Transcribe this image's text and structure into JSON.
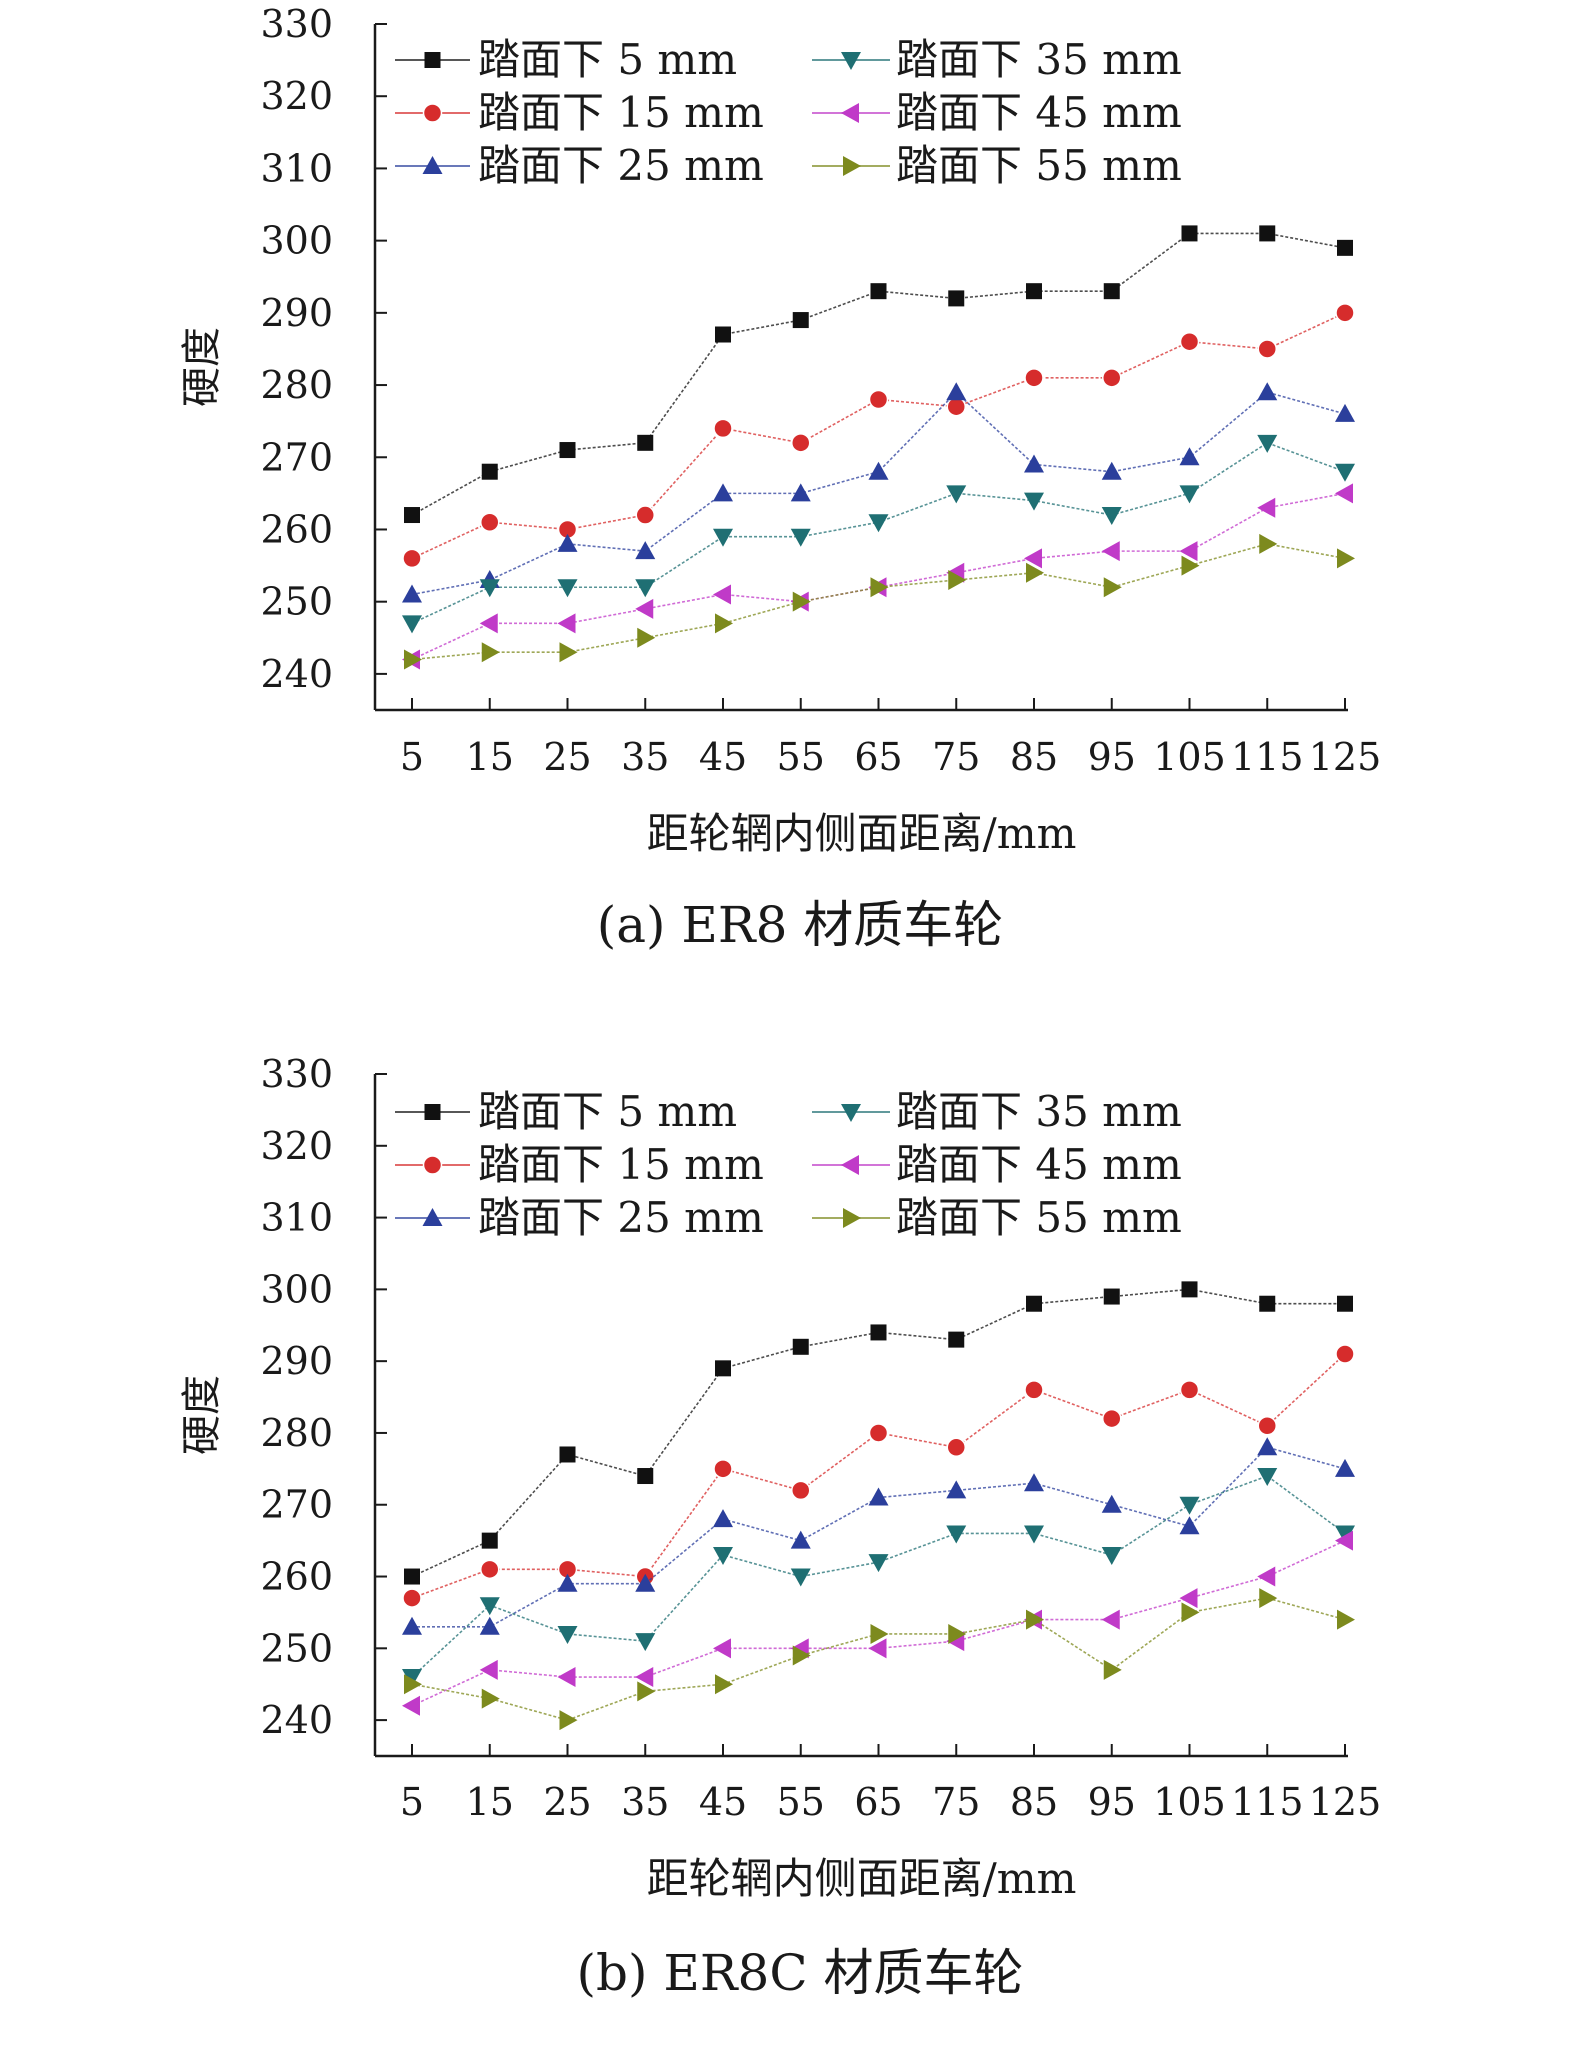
{
  "chart_data": [
    {
      "type": "line",
      "caption": "(a) ER8 材质车轮",
      "xlabel": "距轮辋内侧面距离/mm",
      "ylabel": "硬度",
      "x": [
        5,
        15,
        25,
        35,
        45,
        55,
        65,
        75,
        85,
        95,
        105,
        115,
        125
      ],
      "yticks": [
        240,
        250,
        260,
        270,
        280,
        290,
        300,
        310,
        320,
        330
      ],
      "ylim": [
        235,
        330
      ],
      "legend_position": "top-left",
      "series": [
        {
          "name": "踏面下 5 mm",
          "color": "#111111",
          "marker": "square",
          "values": [
            262,
            268,
            271,
            272,
            287,
            289,
            293,
            292,
            293,
            293,
            301,
            301,
            299
          ]
        },
        {
          "name": "踏面下 15 mm",
          "color": "#d62c2c",
          "marker": "circle",
          "values": [
            256,
            261,
            260,
            262,
            274,
            272,
            278,
            277,
            281,
            281,
            286,
            285,
            290
          ]
        },
        {
          "name": "踏面下 25 mm",
          "color": "#2b3f9c",
          "marker": "triangle-up",
          "values": [
            251,
            253,
            258,
            257,
            265,
            265,
            268,
            279,
            269,
            268,
            270,
            279,
            276
          ]
        },
        {
          "name": "踏面下 35 mm",
          "color": "#1f6f73",
          "marker": "triangle-down",
          "values": [
            247,
            252,
            252,
            252,
            259,
            259,
            261,
            265,
            264,
            262,
            265,
            272,
            268
          ]
        },
        {
          "name": "踏面下 45 mm",
          "color": "#c03ac8",
          "marker": "triangle-left",
          "values": [
            242,
            247,
            247,
            249,
            251,
            250,
            252,
            254,
            256,
            257,
            257,
            263,
            265
          ]
        },
        {
          "name": "踏面下 55 mm",
          "color": "#7d8a1e",
          "marker": "triangle-right",
          "values": [
            242,
            243,
            243,
            245,
            247,
            250,
            252,
            253,
            254,
            252,
            255,
            258,
            256
          ]
        }
      ]
    },
    {
      "type": "line",
      "caption": "(b) ER8C 材质车轮",
      "xlabel": "距轮辋内侧面距离/mm",
      "ylabel": "硬度",
      "x": [
        5,
        15,
        25,
        35,
        45,
        55,
        65,
        75,
        85,
        95,
        105,
        115,
        125
      ],
      "yticks": [
        240,
        250,
        260,
        270,
        280,
        290,
        300,
        310,
        320,
        330
      ],
      "ylim": [
        235,
        330
      ],
      "legend_position": "top-left",
      "series": [
        {
          "name": "踏面下 5 mm",
          "color": "#111111",
          "marker": "square",
          "values": [
            260,
            265,
            277,
            274,
            289,
            292,
            294,
            293,
            298,
            299,
            300,
            298,
            298
          ]
        },
        {
          "name": "踏面下 15 mm",
          "color": "#d62c2c",
          "marker": "circle",
          "values": [
            257,
            261,
            261,
            260,
            275,
            272,
            280,
            278,
            286,
            282,
            286,
            281,
            291
          ]
        },
        {
          "name": "踏面下 25 mm",
          "color": "#2b3f9c",
          "marker": "triangle-up",
          "values": [
            253,
            253,
            259,
            259,
            268,
            265,
            271,
            272,
            273,
            270,
            267,
            278,
            275
          ]
        },
        {
          "name": "踏面下 35 mm",
          "color": "#1f6f73",
          "marker": "triangle-down",
          "values": [
            246,
            256,
            252,
            251,
            263,
            260,
            262,
            266,
            266,
            263,
            270,
            274,
            266
          ]
        },
        {
          "name": "踏面下 45 mm",
          "color": "#c03ac8",
          "marker": "triangle-left",
          "values": [
            242,
            247,
            246,
            246,
            250,
            250,
            250,
            251,
            254,
            254,
            257,
            260,
            265
          ]
        },
        {
          "name": "踏面下 55 mm",
          "color": "#7d8a1e",
          "marker": "triangle-right",
          "values": [
            245,
            243,
            240,
            244,
            245,
            249,
            252,
            252,
            254,
            247,
            255,
            257,
            254
          ]
        }
      ]
    }
  ]
}
